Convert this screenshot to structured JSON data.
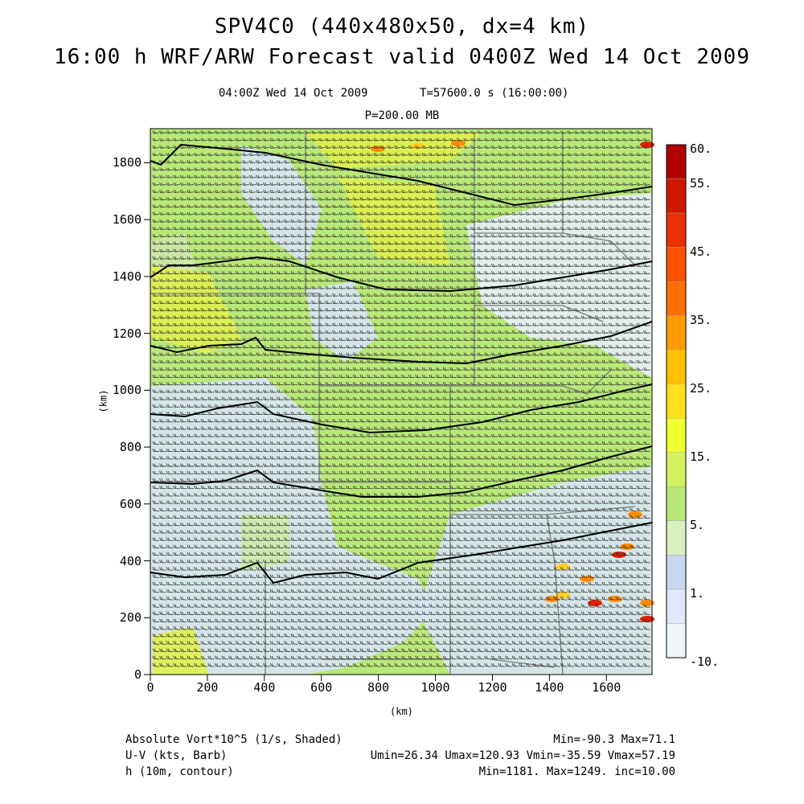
{
  "header": {
    "title_line1": "SPV4C0 (440x480x50, dx=4 km)",
    "title_line2": "16:00 h WRF/ARW Forecast valid 0400Z Wed 14 Oct 2009",
    "valid_time": "04:00Z Wed 14 Oct 2009",
    "model_time": "T=57600.0 s (16:00:00)",
    "pressure_level": "P=200.00 MB"
  },
  "axes": {
    "x_label": "(km)",
    "y_label": "(km)",
    "x_ticks": [
      "0",
      "200",
      "400",
      "600",
      "800",
      "1000",
      "1200",
      "1400",
      "1600"
    ],
    "y_ticks": [
      "1800",
      "1600",
      "1400",
      "1200",
      "1000",
      "800",
      "600",
      "400",
      "200",
      "0"
    ]
  },
  "colorbar": {
    "labels": [
      "60.",
      "55.",
      "45.",
      "35.",
      "25.",
      "15.",
      "5.",
      "1.",
      "-10."
    ],
    "colors": [
      "#b00000",
      "#d01800",
      "#e83000",
      "#ff5000",
      "#ff7000",
      "#ff9a00",
      "#ffc000",
      "#ffe020",
      "#f0ff30",
      "#d4f060",
      "#b8e878",
      "#d8f0c0",
      "#c8d8f0",
      "#dde8f8",
      "#eef6fc"
    ]
  },
  "field_colors": {
    "light_blue": "#d8e4f4",
    "pale_blue": "#e6eef8",
    "pale_green": "#cde8a8",
    "green": "#b8e878",
    "yellow_green": "#e0f050",
    "yellow": "#ffd020",
    "orange": "#ff8c00",
    "red": "#e02000"
  },
  "footer": {
    "left": [
      "Absolute Vort*10^5 (1/s, Shaded)",
      "U-V (kts, Barb)",
      "h (10m, contour)"
    ],
    "right": [
      "Min=-90.3 Max=71.1",
      "Umin=26.34 Umax=120.93 Vmin=-35.59 Vmax=57.19",
      "Min=1181. Max=1249. inc=10.00"
    ]
  }
}
